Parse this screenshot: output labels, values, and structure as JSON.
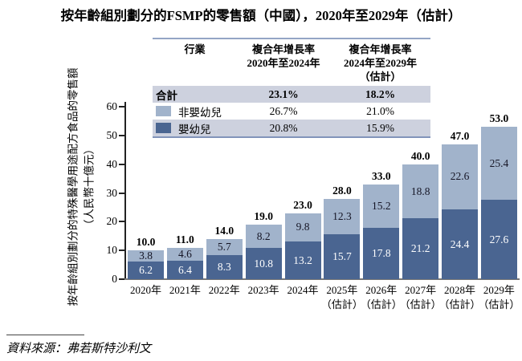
{
  "title": "按年齡組別劃分的FSMP的零售額（中國），2020年至2029年（估計）",
  "cagr_table": {
    "headers": [
      "行業",
      "複合年增長率\n2020年至2024年",
      "複合年增長率\n2024年至2029年\n（估計）"
    ],
    "rows": [
      {
        "label": "合計",
        "swatch": "none",
        "bold": true,
        "cagr_2020_2024": "23.1%",
        "cagr_2024_2029": "18.2%"
      },
      {
        "label": "非嬰幼兒",
        "swatch": "#a1b3cb",
        "bold": false,
        "cagr_2020_2024": "26.7%",
        "cagr_2024_2029": "21.0%"
      },
      {
        "label": "嬰幼兒",
        "swatch": "#4a6591",
        "bold": false,
        "cagr_2020_2024": "20.8%",
        "cagr_2024_2029": "15.9%"
      }
    ]
  },
  "chart_data": {
    "type": "bar",
    "stacked": true,
    "title": "按年齡組別劃分的FSMP的零售額（中國），2020年至2029年（估計）",
    "ylabel": "按年齡組別劃分的特殊醫學用途配方食品的零售額",
    "ylabel_unit": "（人民幣十億元）",
    "ylim": [
      0,
      60
    ],
    "yticks": [
      0,
      10,
      20,
      30,
      40,
      50,
      60
    ],
    "grid": "off",
    "legend_position": "table-top",
    "categories": [
      "2020年",
      "2021年",
      "2022年",
      "2023年",
      "2024年",
      "2025年\n（估計）",
      "2026年\n（估計）",
      "2027年\n（估計）",
      "2028年\n（估計）",
      "2029年\n（估計）"
    ],
    "series": [
      {
        "name": "嬰幼兒",
        "position": "bottom",
        "color": "#4a6591",
        "values": [
          6.2,
          6.4,
          8.3,
          10.8,
          13.2,
          15.7,
          17.8,
          21.2,
          24.4,
          27.6
        ]
      },
      {
        "name": "非嬰幼兒",
        "position": "top",
        "color": "#a1b3cb",
        "values": [
          3.8,
          4.6,
          5.7,
          8.2,
          9.8,
          12.3,
          15.2,
          18.8,
          22.6,
          25.4
        ]
      }
    ],
    "totals": [
      10.0,
      11.0,
      14.0,
      19.0,
      23.0,
      28.0,
      33.0,
      40.0,
      47.0,
      53.0
    ],
    "total_labels": [
      "10.0",
      "11.0",
      "14.0",
      "19.0",
      "23.0",
      "28.0",
      "33.0",
      "40.0",
      "47.0",
      "53.0"
    ]
  },
  "footer": {
    "source": "資料來源：弗若斯特沙利文"
  },
  "colors": {
    "bar_dark": "#4a6591",
    "bar_light": "#a1b3cb",
    "row_band": "#cdd1de",
    "table_border_top": "#94a5c5",
    "table_border_bottom": "#8294ba"
  }
}
